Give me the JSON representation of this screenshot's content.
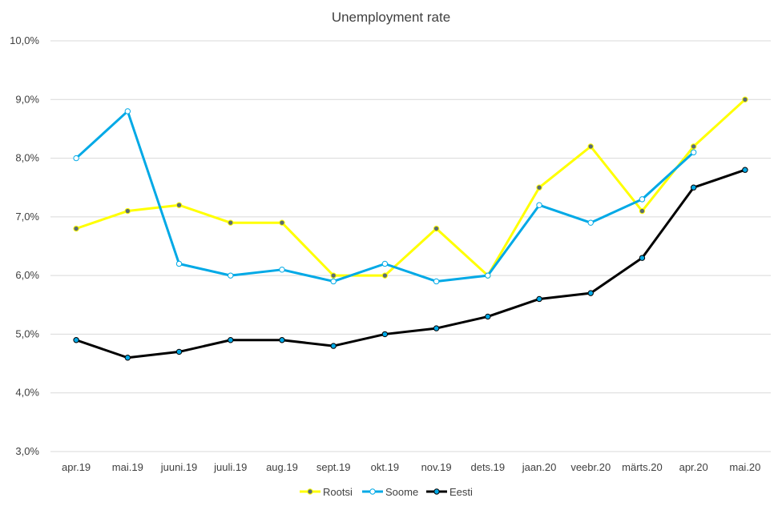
{
  "chart_data": {
    "type": "line",
    "title": "Unemployment rate",
    "xlabel": "",
    "ylabel": "",
    "categories": [
      "apr.19",
      "mai.19",
      "juuni.19",
      "juuli.19",
      "aug.19",
      "sept.19",
      "okt.19",
      "nov.19",
      "dets.19",
      "jaan.20",
      "veebr.20",
      "märts.20",
      "apr.20",
      "mai.20"
    ],
    "ylim": [
      3.0,
      10.0
    ],
    "y_ticks": [
      "3,0%",
      "4,0%",
      "5,0%",
      "6,0%",
      "7,0%",
      "8,0%",
      "9,0%",
      "10,0%"
    ],
    "y_tick_values": [
      3,
      4,
      5,
      6,
      7,
      8,
      9,
      10
    ],
    "grid": true,
    "legend_position": "bottom",
    "series": [
      {
        "name": "Rootsi",
        "color": "#FFFF00",
        "marker_fill": "#5B6B73",
        "marker_stroke": "#FFFF00",
        "values": [
          6.8,
          7.1,
          7.2,
          6.9,
          6.9,
          6.0,
          6.0,
          6.8,
          6.0,
          7.5,
          8.2,
          7.1,
          8.2,
          9.0
        ]
      },
      {
        "name": "Soome",
        "color": "#00A9E6",
        "marker_fill": "#FFFFFF",
        "marker_stroke": "#00A9E6",
        "values": [
          8.0,
          8.8,
          6.2,
          6.0,
          6.1,
          5.9,
          6.2,
          5.9,
          6.0,
          7.2,
          6.9,
          7.3,
          8.1,
          null
        ]
      },
      {
        "name": "Eesti",
        "color": "#000000",
        "marker_fill": "#00A9E6",
        "marker_stroke": "#000000",
        "values": [
          4.9,
          4.6,
          4.7,
          4.9,
          4.9,
          4.8,
          5.0,
          5.1,
          5.3,
          5.6,
          5.7,
          6.3,
          7.5,
          7.8
        ]
      }
    ]
  }
}
